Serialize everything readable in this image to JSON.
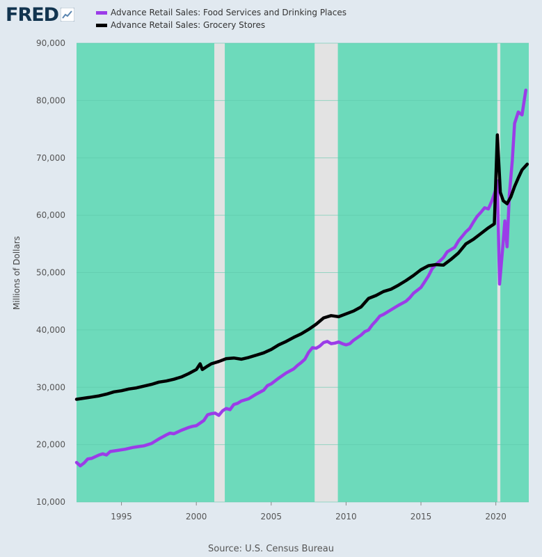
{
  "header": {
    "logo_text": "FRED",
    "logo_icon": "fred-chart-icon"
  },
  "legend": {
    "items": [
      {
        "label": "Advance Retail Sales: Food Services and Drinking Places",
        "color": "#9b3ce8"
      },
      {
        "label": "Advance Retail Sales: Grocery Stores",
        "color": "#000000"
      }
    ]
  },
  "source": "Source: U.S. Census Bureau",
  "chart_data": {
    "type": "line",
    "ylabel": "Millions of Dollars",
    "xlim": [
      1992.0,
      2022.2
    ],
    "ylim": [
      10000,
      90000
    ],
    "y_ticks": [
      10000,
      20000,
      30000,
      40000,
      50000,
      60000,
      70000,
      80000,
      90000
    ],
    "y_tick_labels": [
      "10,000",
      "20,000",
      "30,000",
      "40,000",
      "50,000",
      "60,000",
      "70,000",
      "80,000",
      "90,000"
    ],
    "x_ticks": [
      1995,
      2000,
      2005,
      2010,
      2015,
      2020
    ],
    "x_tick_labels": [
      "1995",
      "2000",
      "2005",
      "2010",
      "2015",
      "2020"
    ],
    "grid": true,
    "plot_background": "#6ddabb",
    "recessions": [
      [
        2001.2,
        2001.9
      ],
      [
        2007.9,
        2009.45
      ],
      [
        2020.1,
        2020.3
      ]
    ],
    "recession_color": "#e3e3e3",
    "series": [
      {
        "name": "Advance Retail Sales: Food Services and Drinking Places",
        "color": "#9b3ce8",
        "points": [
          [
            1992.0,
            16900
          ],
          [
            1992.25,
            16300
          ],
          [
            1992.5,
            16800
          ],
          [
            1992.75,
            17500
          ],
          [
            1993.0,
            17600
          ],
          [
            1993.5,
            18200
          ],
          [
            1993.75,
            18400
          ],
          [
            1994.0,
            18200
          ],
          [
            1994.25,
            18800
          ],
          [
            1994.75,
            19000
          ],
          [
            1995.25,
            19200
          ],
          [
            1995.75,
            19500
          ],
          [
            1996.0,
            19600
          ],
          [
            1996.5,
            19800
          ],
          [
            1997.0,
            20200
          ],
          [
            1997.5,
            21000
          ],
          [
            1998.0,
            21700
          ],
          [
            1998.25,
            22000
          ],
          [
            1998.5,
            21900
          ],
          [
            1999.0,
            22500
          ],
          [
            1999.5,
            23000
          ],
          [
            1999.75,
            23200
          ],
          [
            2000.0,
            23300
          ],
          [
            2000.5,
            24200
          ],
          [
            2000.75,
            25200
          ],
          [
            2001.0,
            25400
          ],
          [
            2001.25,
            25500
          ],
          [
            2001.5,
            25100
          ],
          [
            2001.75,
            25900
          ],
          [
            2002.0,
            26300
          ],
          [
            2002.25,
            26100
          ],
          [
            2002.5,
            27000
          ],
          [
            2002.75,
            27200
          ],
          [
            2003.0,
            27600
          ],
          [
            2003.5,
            28000
          ],
          [
            2004.0,
            28800
          ],
          [
            2004.5,
            29500
          ],
          [
            2004.75,
            30300
          ],
          [
            2005.0,
            30600
          ],
          [
            2005.5,
            31600
          ],
          [
            2006.0,
            32500
          ],
          [
            2006.5,
            33200
          ],
          [
            2006.75,
            33800
          ],
          [
            2007.0,
            34300
          ],
          [
            2007.25,
            34900
          ],
          [
            2007.5,
            36100
          ],
          [
            2007.75,
            36900
          ],
          [
            2008.0,
            36800
          ],
          [
            2008.25,
            37200
          ],
          [
            2008.5,
            37800
          ],
          [
            2008.75,
            38000
          ],
          [
            2009.0,
            37600
          ],
          [
            2009.25,
            37700
          ],
          [
            2009.5,
            37900
          ],
          [
            2009.75,
            37600
          ],
          [
            2010.0,
            37400
          ],
          [
            2010.25,
            37600
          ],
          [
            2010.5,
            38200
          ],
          [
            2011.0,
            39100
          ],
          [
            2011.25,
            39700
          ],
          [
            2011.5,
            40000
          ],
          [
            2011.75,
            40900
          ],
          [
            2012.0,
            41600
          ],
          [
            2012.25,
            42400
          ],
          [
            2012.5,
            42700
          ],
          [
            2013.0,
            43500
          ],
          [
            2013.5,
            44300
          ],
          [
            2014.0,
            45000
          ],
          [
            2014.25,
            45600
          ],
          [
            2014.5,
            46400
          ],
          [
            2015.0,
            47400
          ],
          [
            2015.25,
            48400
          ],
          [
            2015.5,
            49400
          ],
          [
            2015.75,
            50700
          ],
          [
            2016.0,
            51400
          ],
          [
            2016.5,
            52600
          ],
          [
            2016.75,
            53600
          ],
          [
            2017.0,
            54000
          ],
          [
            2017.25,
            54400
          ],
          [
            2017.5,
            55500
          ],
          [
            2018.0,
            57100
          ],
          [
            2018.25,
            57700
          ],
          [
            2018.5,
            58800
          ],
          [
            2018.75,
            59800
          ],
          [
            2019.0,
            60500
          ],
          [
            2019.25,
            61300
          ],
          [
            2019.5,
            61100
          ],
          [
            2019.75,
            62600
          ],
          [
            2020.0,
            64500
          ],
          [
            2020.1,
            66000
          ],
          [
            2020.25,
            48000
          ],
          [
            2020.45,
            54000
          ],
          [
            2020.6,
            59000
          ],
          [
            2020.75,
            54500
          ],
          [
            2020.9,
            63500
          ],
          [
            2021.1,
            69500
          ],
          [
            2021.25,
            76000
          ],
          [
            2021.5,
            78000
          ],
          [
            2021.75,
            77500
          ],
          [
            2022.0,
            81800
          ]
        ]
      },
      {
        "name": "Advance Retail Sales: Grocery Stores",
        "color": "#000000",
        "points": [
          [
            1992.0,
            27900
          ],
          [
            1992.5,
            28100
          ],
          [
            1993.0,
            28300
          ],
          [
            1993.5,
            28500
          ],
          [
            1994.0,
            28800
          ],
          [
            1994.5,
            29200
          ],
          [
            1995.0,
            29400
          ],
          [
            1995.5,
            29700
          ],
          [
            1996.0,
            29900
          ],
          [
            1996.5,
            30200
          ],
          [
            1997.0,
            30500
          ],
          [
            1997.5,
            30900
          ],
          [
            1998.0,
            31100
          ],
          [
            1998.5,
            31400
          ],
          [
            1999.0,
            31800
          ],
          [
            1999.5,
            32400
          ],
          [
            2000.0,
            33100
          ],
          [
            2000.25,
            34100
          ],
          [
            2000.4,
            33100
          ],
          [
            2000.75,
            33700
          ],
          [
            2001.0,
            34100
          ],
          [
            2001.5,
            34500
          ],
          [
            2002.0,
            35000
          ],
          [
            2002.5,
            35100
          ],
          [
            2003.0,
            34900
          ],
          [
            2003.5,
            35200
          ],
          [
            2004.0,
            35600
          ],
          [
            2004.5,
            36000
          ],
          [
            2005.0,
            36600
          ],
          [
            2005.5,
            37400
          ],
          [
            2006.0,
            38000
          ],
          [
            2006.5,
            38700
          ],
          [
            2007.0,
            39300
          ],
          [
            2007.5,
            40100
          ],
          [
            2008.0,
            41000
          ],
          [
            2008.5,
            42100
          ],
          [
            2009.0,
            42500
          ],
          [
            2009.5,
            42300
          ],
          [
            2010.0,
            42800
          ],
          [
            2010.5,
            43300
          ],
          [
            2011.0,
            44000
          ],
          [
            2011.5,
            45500
          ],
          [
            2012.0,
            46000
          ],
          [
            2012.5,
            46700
          ],
          [
            2013.0,
            47100
          ],
          [
            2013.5,
            47800
          ],
          [
            2014.0,
            48600
          ],
          [
            2014.5,
            49500
          ],
          [
            2015.0,
            50500
          ],
          [
            2015.5,
            51200
          ],
          [
            2016.0,
            51400
          ],
          [
            2016.5,
            51300
          ],
          [
            2017.0,
            52300
          ],
          [
            2017.5,
            53400
          ],
          [
            2018.0,
            55000
          ],
          [
            2018.5,
            55800
          ],
          [
            2019.0,
            56800
          ],
          [
            2019.5,
            57800
          ],
          [
            2019.9,
            58500
          ],
          [
            2020.1,
            74000
          ],
          [
            2020.3,
            64000
          ],
          [
            2020.5,
            62500
          ],
          [
            2020.75,
            62000
          ],
          [
            2021.0,
            63200
          ],
          [
            2021.25,
            65000
          ],
          [
            2021.5,
            66500
          ],
          [
            2021.75,
            67900
          ],
          [
            2022.1,
            68900
          ]
        ]
      }
    ]
  }
}
